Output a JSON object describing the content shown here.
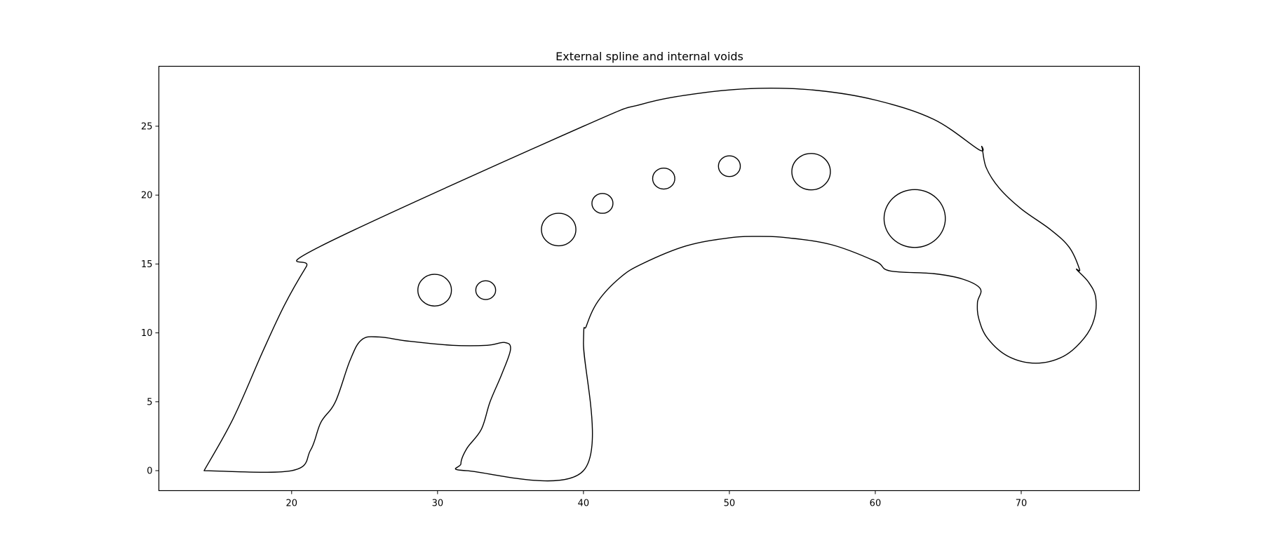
{
  "chart_data": {
    "type": "line",
    "title": "External spline and internal voids",
    "xlabel": "",
    "ylabel": "",
    "xlim": [
      10.9,
      78.1
    ],
    "ylim": [
      -1.45,
      29.35
    ],
    "x_ticks": [
      20,
      30,
      40,
      50,
      60,
      70
    ],
    "y_ticks": [
      0,
      5,
      10,
      15,
      20,
      25
    ],
    "grid": false,
    "legend": "none",
    "outer_contour": [
      [
        14.0,
        0.0
      ],
      [
        16.0,
        3.8
      ],
      [
        18.0,
        8.6
      ],
      [
        19.5,
        12.0
      ],
      [
        21.0,
        14.8
      ],
      [
        22.0,
        16.3
      ],
      [
        40.0,
        25.0
      ],
      [
        44.0,
        26.6
      ],
      [
        48.0,
        27.4
      ],
      [
        52.0,
        27.75
      ],
      [
        56.0,
        27.6
      ],
      [
        60.0,
        26.9
      ],
      [
        64.0,
        25.5
      ],
      [
        67.1,
        23.3
      ],
      [
        67.3,
        23.5
      ],
      [
        67.6,
        22.0
      ],
      [
        68.5,
        20.5
      ],
      [
        70.0,
        19.0
      ],
      [
        72.0,
        17.5
      ],
      [
        73.3,
        16.2
      ],
      [
        74.0,
        14.6
      ],
      [
        73.8,
        14.6
      ],
      [
        74.6,
        13.7
      ],
      [
        75.1,
        12.6
      ],
      [
        75.0,
        11.0
      ],
      [
        74.3,
        9.6
      ],
      [
        72.9,
        8.3
      ],
      [
        71.0,
        7.8
      ],
      [
        69.1,
        8.3
      ],
      [
        67.7,
        9.6
      ],
      [
        67.1,
        11.0
      ],
      [
        67.0,
        12.2
      ],
      [
        67.2,
        13.2
      ],
      [
        66.0,
        13.9
      ],
      [
        64.0,
        14.3
      ],
      [
        61.0,
        14.5
      ],
      [
        60.0,
        15.2
      ],
      [
        57.0,
        16.4
      ],
      [
        54.0,
        16.9
      ],
      [
        52.0,
        17.0
      ],
      [
        50.0,
        16.9
      ],
      [
        47.0,
        16.3
      ],
      [
        44.0,
        15.0
      ],
      [
        42.5,
        14.0
      ],
      [
        41.0,
        12.3
      ],
      [
        40.2,
        10.5
      ],
      [
        40.0,
        9.3
      ],
      [
        40.0,
        0.0
      ],
      [
        32.0,
        0.0
      ],
      [
        31.6,
        0.5
      ],
      [
        32.0,
        1.6
      ],
      [
        33.0,
        3.0
      ],
      [
        33.6,
        5.0
      ],
      [
        34.4,
        7.0
      ],
      [
        35.0,
        8.8
      ],
      [
        34.6,
        9.3
      ],
      [
        33.4,
        9.1
      ],
      [
        31.0,
        9.1
      ],
      [
        28.0,
        9.4
      ],
      [
        26.0,
        9.7
      ],
      [
        24.8,
        9.5
      ],
      [
        24.0,
        8.0
      ],
      [
        23.0,
        5.0
      ],
      [
        22.0,
        3.5
      ],
      [
        21.3,
        1.5
      ],
      [
        20.0,
        0.0
      ],
      [
        14.0,
        0.0
      ]
    ],
    "voids": [
      {
        "cx": 29.8,
        "cy": 13.1,
        "r": 1.15
      },
      {
        "cx": 33.3,
        "cy": 13.1,
        "r": 0.68
      },
      {
        "cx": 38.3,
        "cy": 17.5,
        "r": 1.18
      },
      {
        "cx": 41.3,
        "cy": 19.4,
        "r": 0.72
      },
      {
        "cx": 45.5,
        "cy": 21.2,
        "r": 0.76
      },
      {
        "cx": 50.0,
        "cy": 22.1,
        "r": 0.75
      },
      {
        "cx": 55.6,
        "cy": 21.7,
        "r": 1.32
      },
      {
        "cx": 62.7,
        "cy": 18.3,
        "r": 2.1
      }
    ]
  }
}
